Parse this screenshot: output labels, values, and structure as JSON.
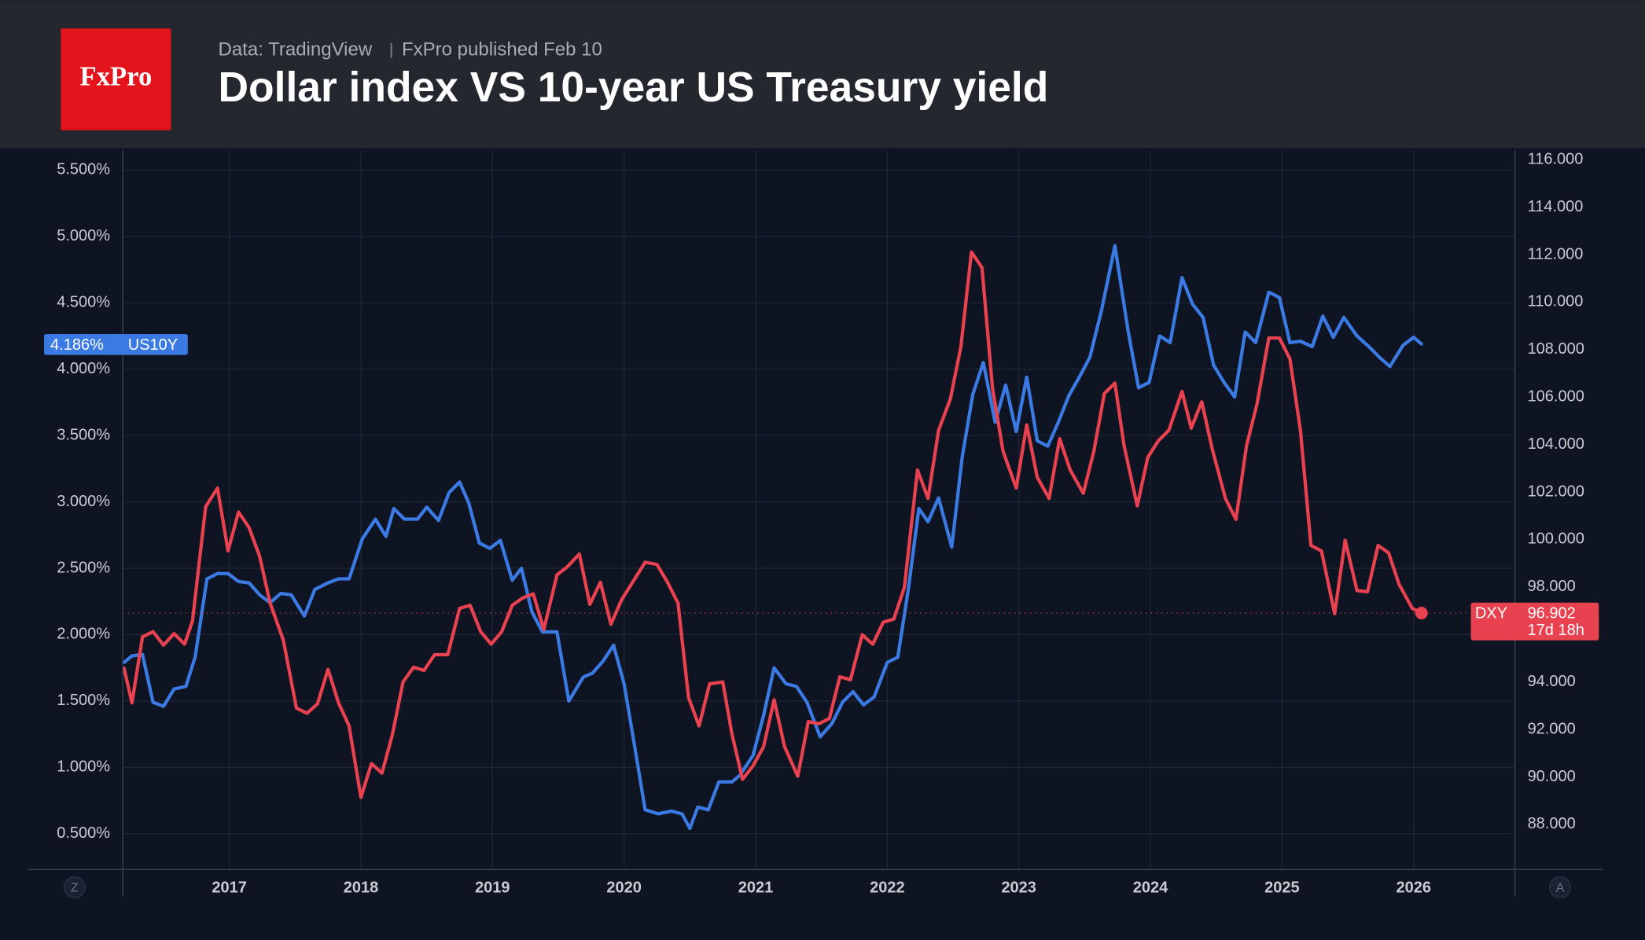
{
  "header": {
    "logo": "FxPro",
    "source": "Data: TradingView",
    "published": "FxPro published Feb 10"
  },
  "chart_data": {
    "type": "line",
    "title": "Dollar index VS 10-year US Treasury yield",
    "xlim": [
      2016.19,
      2026.77
    ],
    "xticks": [
      2017,
      2018,
      2019,
      2020,
      2021,
      2022,
      2023,
      2024,
      2025,
      2026
    ],
    "ylim": [
      0.23,
      5.65
    ],
    "yticks": [
      {
        "value": 0.5,
        "label": "0.500%"
      },
      {
        "value": 1,
        "label": "1.000%"
      },
      {
        "value": 1.5,
        "label": "1.500%"
      },
      {
        "value": 2,
        "label": "2.000%"
      },
      {
        "value": 2.5,
        "label": "2.500%"
      },
      {
        "value": 3,
        "label": "3.000%"
      },
      {
        "value": 3.5,
        "label": "3.500%"
      },
      {
        "value": 4,
        "label": "4.000%"
      },
      {
        "value": 4.5,
        "label": "4.500%"
      },
      {
        "value": 5,
        "label": "5.000%"
      },
      {
        "value": 5.5,
        "label": "5.500%"
      }
    ],
    "y2lim": [
      86.1,
      116.4
    ],
    "y2ticks": [
      {
        "value": 88,
        "label": "88.000"
      },
      {
        "value": 90,
        "label": "90.000"
      },
      {
        "value": 92,
        "label": "92.000"
      },
      {
        "value": 94,
        "label": "94.000"
      },
      {
        "value": 96,
        "label": "96.000"
      },
      {
        "value": 98,
        "label": "98.000"
      },
      {
        "value": 100,
        "label": "100.000"
      },
      {
        "value": 102,
        "label": "102.000"
      },
      {
        "value": 104,
        "label": "104.000"
      },
      {
        "value": 106,
        "label": "106.000"
      },
      {
        "value": 108,
        "label": "108.000"
      },
      {
        "value": 110,
        "label": "110.000"
      },
      {
        "value": 112,
        "label": "112.000"
      },
      {
        "value": 114,
        "label": "114.000"
      },
      {
        "value": 116,
        "label": "116.000"
      }
    ],
    "grid": true,
    "axis_buttons": [
      "Z",
      "A"
    ],
    "series": [
      {
        "name": "US10Y",
        "color": "#3b7ae3",
        "axis": "y",
        "last": {
          "value": 4.186,
          "label": "4.186%"
        },
        "x": [
          2016.2,
          2016.26,
          2016.34,
          2016.42,
          2016.5,
          2016.58,
          2016.67,
          2016.74,
          2016.83,
          2016.91,
          2016.99,
          2017.07,
          2017.15,
          2017.23,
          2017.31,
          2017.39,
          2017.47,
          2017.57,
          2017.65,
          2017.75,
          2017.83,
          2017.91,
          2018.01,
          2018.11,
          2018.19,
          2018.25,
          2018.33,
          2018.43,
          2018.5,
          2018.59,
          2018.67,
          2018.75,
          2018.82,
          2018.9,
          2018.98,
          2019.06,
          2019.15,
          2019.22,
          2019.3,
          2019.38,
          2019.49,
          2019.58,
          2019.69,
          2019.76,
          2019.84,
          2019.92,
          2020.0,
          2020.08,
          2020.16,
          2020.26,
          2020.36,
          2020.44,
          2020.5,
          2020.56,
          2020.64,
          2020.72,
          2020.82,
          2020.88,
          2020.98,
          2021.06,
          2021.14,
          2021.23,
          2021.31,
          2021.39,
          2021.49,
          2021.58,
          2021.66,
          2021.74,
          2021.82,
          2021.9,
          2022.0,
          2022.08,
          2022.16,
          2022.24,
          2022.31,
          2022.39,
          2022.49,
          2022.57,
          2022.65,
          2022.73,
          2022.82,
          2022.9,
          2022.98,
          2023.06,
          2023.14,
          2023.22,
          2023.3,
          2023.38,
          2023.46,
          2023.54,
          2023.63,
          2023.73,
          2023.83,
          2023.91,
          2023.99,
          2024.07,
          2024.15,
          2024.24,
          2024.32,
          2024.4,
          2024.48,
          2024.56,
          2024.64,
          2024.72,
          2024.8,
          2024.9,
          2024.98,
          2025.06,
          2025.14,
          2025.23,
          2025.31,
          2025.39,
          2025.47,
          2025.57,
          2025.66,
          2025.74,
          2025.82,
          2025.92,
          2026.0,
          2026.06
        ],
        "values": [
          1.79,
          1.84,
          1.85,
          1.49,
          1.46,
          1.59,
          1.61,
          1.83,
          2.42,
          2.46,
          2.46,
          2.4,
          2.39,
          2.3,
          2.24,
          2.31,
          2.3,
          2.14,
          2.34,
          2.39,
          2.42,
          2.42,
          2.72,
          2.87,
          2.74,
          2.95,
          2.87,
          2.87,
          2.96,
          2.86,
          3.07,
          3.15,
          2.99,
          2.69,
          2.65,
          2.71,
          2.41,
          2.5,
          2.17,
          2.02,
          2.02,
          1.5,
          1.68,
          1.71,
          1.8,
          1.92,
          1.63,
          1.16,
          0.68,
          0.65,
          0.67,
          0.65,
          0.54,
          0.7,
          0.68,
          0.89,
          0.89,
          0.94,
          1.09,
          1.39,
          1.75,
          1.63,
          1.61,
          1.49,
          1.23,
          1.33,
          1.49,
          1.57,
          1.47,
          1.53,
          1.79,
          1.83,
          2.34,
          2.95,
          2.85,
          3.03,
          2.66,
          3.34,
          3.81,
          4.05,
          3.6,
          3.88,
          3.53,
          3.94,
          3.46,
          3.42,
          3.6,
          3.8,
          3.94,
          4.09,
          4.45,
          4.93,
          4.29,
          3.86,
          3.9,
          4.25,
          4.2,
          4.69,
          4.49,
          4.39,
          4.03,
          3.9,
          3.79,
          4.28,
          4.2,
          4.58,
          4.54,
          4.2,
          4.21,
          4.17,
          4.4,
          4.24,
          4.39,
          4.25,
          4.17,
          4.09,
          4.02,
          4.18,
          4.24,
          4.19
        ]
      },
      {
        "name": "DXY",
        "color": "#e8414f",
        "axis": "y2",
        "countdown": "17d 18h",
        "x": [
          2016.2,
          2016.26,
          2016.34,
          2016.42,
          2016.5,
          2016.58,
          2016.66,
          2016.72,
          2016.82,
          2016.91,
          2016.99,
          2017.07,
          2017.15,
          2017.23,
          2017.31,
          2017.41,
          2017.51,
          2017.59,
          2017.67,
          2017.75,
          2017.83,
          2017.91,
          2018.0,
          2018.08,
          2018.16,
          2018.24,
          2018.32,
          2018.4,
          2018.48,
          2018.56,
          2018.66,
          2018.75,
          2018.83,
          2018.91,
          2018.99,
          2019.07,
          2019.15,
          2019.23,
          2019.31,
          2019.39,
          2019.49,
          2019.57,
          2019.66,
          2019.74,
          2019.82,
          2019.9,
          2019.98,
          2020.06,
          2020.16,
          2020.25,
          2020.33,
          2020.41,
          2020.49,
          2020.57,
          2020.65,
          2020.75,
          2020.82,
          2020.9,
          2020.98,
          2021.06,
          2021.14,
          2021.22,
          2021.32,
          2021.4,
          2021.48,
          2021.56,
          2021.64,
          2021.72,
          2021.81,
          2021.89,
          2021.97,
          2022.05,
          2022.13,
          2022.23,
          2022.31,
          2022.39,
          2022.48,
          2022.56,
          2022.64,
          2022.72,
          2022.8,
          2022.88,
          2022.98,
          2023.06,
          2023.14,
          2023.23,
          2023.31,
          2023.39,
          2023.49,
          2023.57,
          2023.65,
          2023.73,
          2023.8,
          2023.9,
          2023.98,
          2024.06,
          2024.14,
          2024.24,
          2024.31,
          2024.39,
          2024.47,
          2024.57,
          2024.65,
          2024.73,
          2024.81,
          2024.9,
          2024.98,
          2025.06,
          2025.14,
          2025.22,
          2025.3,
          2025.4,
          2025.48,
          2025.57,
          2025.65,
          2025.73,
          2025.81,
          2025.89,
          2025.99,
          2026.06
        ],
        "values": [
          94.58,
          93.12,
          95.9,
          96.12,
          95.55,
          96.04,
          95.59,
          96.57,
          101.38,
          102.17,
          99.52,
          101.16,
          100.5,
          99.3,
          97.32,
          95.77,
          92.9,
          92.68,
          93.08,
          94.53,
          93.12,
          92.15,
          89.14,
          90.56,
          90.16,
          91.8,
          94.0,
          94.62,
          94.49,
          95.15,
          95.15,
          97.1,
          97.23,
          96.12,
          95.59,
          96.12,
          97.23,
          97.54,
          97.71,
          96.21,
          98.51,
          98.86,
          99.39,
          97.27,
          98.2,
          96.43,
          97.45,
          98.16,
          99.04,
          98.95,
          98.2,
          97.32,
          93.34,
          92.15,
          93.92,
          94.0,
          91.8,
          89.9,
          90.47,
          91.27,
          93.25,
          91.27,
          90.03,
          92.33,
          92.24,
          92.46,
          94.22,
          94.09,
          95.99,
          95.59,
          96.52,
          96.65,
          97.98,
          102.93,
          101.73,
          104.6,
          105.93,
          108.14,
          112.11,
          111.45,
          106.37,
          103.72,
          102.17,
          104.83,
          102.62,
          101.73,
          104.25,
          102.93,
          101.95,
          103.72,
          106.15,
          106.59,
          103.94,
          101.42,
          103.46,
          104.16,
          104.6,
          106.24,
          104.69,
          105.8,
          103.81,
          101.73,
          100.85,
          103.94,
          105.71,
          108.49,
          108.49,
          107.61,
          104.6,
          99.75,
          99.52,
          96.87,
          99.97,
          97.85,
          97.8,
          99.75,
          99.44,
          98.11,
          97.1,
          96.902
        ]
      }
    ]
  }
}
